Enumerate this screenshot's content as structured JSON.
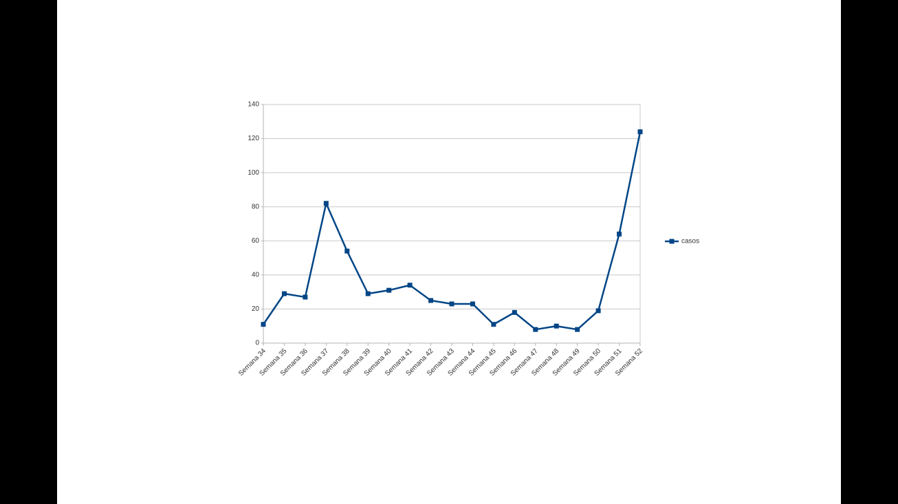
{
  "chart_data": {
    "type": "line",
    "categories": [
      "Semana 34",
      "Semana 35",
      "Semana 36",
      "Semana 37",
      "Semana 38",
      "Semana 39",
      "Semana 40",
      "Semana 41",
      "Semana 42",
      "Semana 43",
      "Semana 44",
      "Semana 45",
      "Semana 46",
      "Semana 47",
      "Semana 48",
      "Semana 49",
      "Semana 50",
      "Semana 51",
      "Semana 52"
    ],
    "series": [
      {
        "name": "casos",
        "color": "#004586",
        "values": [
          11,
          29,
          27,
          82,
          54,
          29,
          31,
          34,
          25,
          23,
          23,
          11,
          18,
          8,
          10,
          8,
          19,
          64,
          124
        ]
      }
    ],
    "ylim": [
      0,
      140
    ],
    "yticks": [
      0,
      20,
      40,
      60,
      80,
      100,
      120,
      140
    ],
    "grid": true,
    "legend": "right"
  }
}
